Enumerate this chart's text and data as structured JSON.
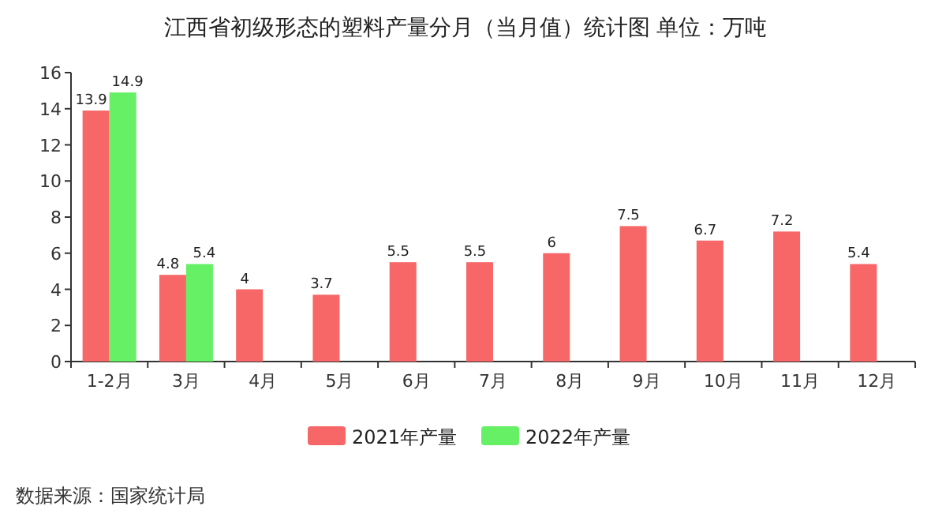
{
  "chart_data": {
    "type": "bar",
    "title": "江西省初级形态的塑料产量分月（当月值）统计图 单位：万吨",
    "categories": [
      "1-2月",
      "3月",
      "4月",
      "5月",
      "6月",
      "7月",
      "8月",
      "9月",
      "10月",
      "11月",
      "12月"
    ],
    "series": [
      {
        "name": "2021年产量",
        "color": "#f76767",
        "values": [
          13.9,
          4.8,
          4,
          3.7,
          5.5,
          5.5,
          6,
          7.5,
          6.7,
          7.2,
          5.4
        ]
      },
      {
        "name": "2022年产量",
        "color": "#66f066",
        "values": [
          14.9,
          5.4,
          null,
          null,
          null,
          null,
          null,
          null,
          null,
          null,
          null
        ]
      }
    ],
    "ylim": [
      0,
      16
    ],
    "yticks": [
      0,
      2,
      4,
      6,
      8,
      10,
      12,
      14,
      16
    ],
    "data_labels": true,
    "legend": "bottom",
    "annotations": [
      "数据来源：国家统计局"
    ]
  }
}
